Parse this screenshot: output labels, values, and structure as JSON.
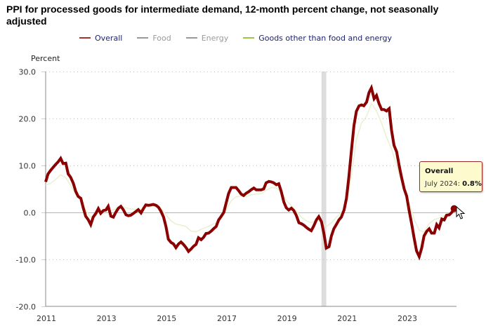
{
  "chart_data": {
    "type": "line",
    "title": "PPI for processed goods for intermediate demand, 12-month percent change, not seasonally adjusted",
    "ylabel": "Percent",
    "xlabel": "",
    "ylim": [
      -20,
      30
    ],
    "yticks": [
      "30.0",
      "20.0",
      "10.0",
      "0.0",
      "-10.0",
      "-20.0"
    ],
    "ytick_values": [
      30,
      20,
      10,
      0,
      -10,
      -20
    ],
    "xlim": [
      2011.0,
      2024.75
    ],
    "xticks": [
      "2011",
      "2013",
      "2015",
      "2017",
      "2019",
      "2021",
      "2023"
    ],
    "xtick_values": [
      2011,
      2013,
      2015,
      2017,
      2019,
      2021,
      2023
    ],
    "grid": "horizontal-dotted",
    "legend": "top-center",
    "recession_band": {
      "start": 2020.17,
      "end": 2020.33,
      "color": "#dddddd"
    },
    "series": [
      {
        "name": "Overall",
        "color": "#8b0000",
        "visible": true,
        "points": [
          [
            2011.0,
            6.5
          ],
          [
            2011.08,
            8.2
          ],
          [
            2011.17,
            9.0
          ],
          [
            2011.25,
            9.6
          ],
          [
            2011.33,
            10.2
          ],
          [
            2011.42,
            10.8
          ],
          [
            2011.5,
            11.5
          ],
          [
            2011.58,
            10.4
          ],
          [
            2011.67,
            10.5
          ],
          [
            2011.75,
            8.2
          ],
          [
            2011.83,
            7.5
          ],
          [
            2011.92,
            6.2
          ],
          [
            2012.0,
            4.5
          ],
          [
            2012.08,
            3.4
          ],
          [
            2012.17,
            3.0
          ],
          [
            2012.25,
            1.0
          ],
          [
            2012.33,
            -0.8
          ],
          [
            2012.42,
            -1.6
          ],
          [
            2012.5,
            -2.6
          ],
          [
            2012.58,
            -1.0
          ],
          [
            2012.67,
            -0.2
          ],
          [
            2012.75,
            0.8
          ],
          [
            2012.83,
            -0.2
          ],
          [
            2012.92,
            0.4
          ],
          [
            2013.0,
            0.5
          ],
          [
            2013.08,
            1.3
          ],
          [
            2013.17,
            -0.8
          ],
          [
            2013.25,
            -1.0
          ],
          [
            2013.33,
            0.0
          ],
          [
            2013.42,
            0.9
          ],
          [
            2013.5,
            1.3
          ],
          [
            2013.58,
            0.6
          ],
          [
            2013.67,
            -0.5
          ],
          [
            2013.75,
            -0.7
          ],
          [
            2013.83,
            -0.6
          ],
          [
            2013.92,
            -0.2
          ],
          [
            2014.0,
            0.2
          ],
          [
            2014.08,
            0.6
          ],
          [
            2014.17,
            -0.1
          ],
          [
            2014.25,
            0.8
          ],
          [
            2014.33,
            1.6
          ],
          [
            2014.42,
            1.5
          ],
          [
            2014.5,
            1.6
          ],
          [
            2014.58,
            1.7
          ],
          [
            2014.67,
            1.5
          ],
          [
            2014.75,
            1.1
          ],
          [
            2014.83,
            0.3
          ],
          [
            2014.92,
            -1.0
          ],
          [
            2015.0,
            -3.0
          ],
          [
            2015.08,
            -5.7
          ],
          [
            2015.17,
            -6.4
          ],
          [
            2015.25,
            -6.7
          ],
          [
            2015.33,
            -7.5
          ],
          [
            2015.42,
            -6.7
          ],
          [
            2015.5,
            -6.3
          ],
          [
            2015.58,
            -6.8
          ],
          [
            2015.67,
            -7.5
          ],
          [
            2015.75,
            -8.3
          ],
          [
            2015.83,
            -7.8
          ],
          [
            2015.92,
            -7.2
          ],
          [
            2016.0,
            -6.8
          ],
          [
            2016.08,
            -5.4
          ],
          [
            2016.17,
            -5.8
          ],
          [
            2016.25,
            -5.3
          ],
          [
            2016.33,
            -4.5
          ],
          [
            2016.42,
            -4.4
          ],
          [
            2016.5,
            -4.0
          ],
          [
            2016.58,
            -3.5
          ],
          [
            2016.67,
            -3.0
          ],
          [
            2016.75,
            -1.6
          ],
          [
            2016.83,
            -0.9
          ],
          [
            2016.92,
            0.0
          ],
          [
            2017.0,
            2.0
          ],
          [
            2017.08,
            4.0
          ],
          [
            2017.17,
            5.3
          ],
          [
            2017.25,
            5.3
          ],
          [
            2017.33,
            5.3
          ],
          [
            2017.42,
            4.6
          ],
          [
            2017.5,
            3.9
          ],
          [
            2017.58,
            3.6
          ],
          [
            2017.67,
            4.1
          ],
          [
            2017.75,
            4.4
          ],
          [
            2017.83,
            4.8
          ],
          [
            2017.92,
            5.2
          ],
          [
            2018.0,
            4.8
          ],
          [
            2018.08,
            4.8
          ],
          [
            2018.17,
            4.8
          ],
          [
            2018.25,
            5.0
          ],
          [
            2018.33,
            6.3
          ],
          [
            2018.42,
            6.6
          ],
          [
            2018.5,
            6.5
          ],
          [
            2018.58,
            6.3
          ],
          [
            2018.67,
            5.9
          ],
          [
            2018.75,
            6.1
          ],
          [
            2018.83,
            4.5
          ],
          [
            2018.92,
            2.2
          ],
          [
            2019.0,
            1.0
          ],
          [
            2019.08,
            0.5
          ],
          [
            2019.17,
            0.9
          ],
          [
            2019.25,
            0.4
          ],
          [
            2019.33,
            -0.6
          ],
          [
            2019.42,
            -2.2
          ],
          [
            2019.5,
            -2.4
          ],
          [
            2019.58,
            -2.7
          ],
          [
            2019.67,
            -3.2
          ],
          [
            2019.75,
            -3.6
          ],
          [
            2019.83,
            -3.9
          ],
          [
            2019.92,
            -2.8
          ],
          [
            2020.0,
            -1.6
          ],
          [
            2020.08,
            -0.9
          ],
          [
            2020.17,
            -2.0
          ],
          [
            2020.25,
            -4.5
          ],
          [
            2020.33,
            -7.6
          ],
          [
            2020.42,
            -7.3
          ],
          [
            2020.5,
            -5.0
          ],
          [
            2020.58,
            -3.5
          ],
          [
            2020.67,
            -2.5
          ],
          [
            2020.75,
            -1.6
          ],
          [
            2020.83,
            -1.0
          ],
          [
            2020.92,
            0.5
          ],
          [
            2021.0,
            3.0
          ],
          [
            2021.08,
            7.5
          ],
          [
            2021.17,
            13.5
          ],
          [
            2021.25,
            18.5
          ],
          [
            2021.33,
            21.5
          ],
          [
            2021.42,
            22.7
          ],
          [
            2021.5,
            22.9
          ],
          [
            2021.58,
            22.7
          ],
          [
            2021.67,
            23.5
          ],
          [
            2021.75,
            25.5
          ],
          [
            2021.83,
            26.5
          ],
          [
            2021.92,
            24.2
          ],
          [
            2022.0,
            24.9
          ],
          [
            2022.08,
            23.2
          ],
          [
            2022.17,
            21.9
          ],
          [
            2022.25,
            21.9
          ],
          [
            2022.33,
            21.6
          ],
          [
            2022.42,
            22.1
          ],
          [
            2022.5,
            17.5
          ],
          [
            2022.58,
            14.3
          ],
          [
            2022.67,
            12.9
          ],
          [
            2022.75,
            10.0
          ],
          [
            2022.83,
            7.5
          ],
          [
            2022.92,
            5.0
          ],
          [
            2023.0,
            3.5
          ],
          [
            2023.08,
            0.5
          ],
          [
            2023.17,
            -2.5
          ],
          [
            2023.25,
            -5.5
          ],
          [
            2023.33,
            -8.2
          ],
          [
            2023.42,
            -9.4
          ],
          [
            2023.5,
            -7.6
          ],
          [
            2023.58,
            -5.0
          ],
          [
            2023.67,
            -4.0
          ],
          [
            2023.75,
            -3.5
          ],
          [
            2023.83,
            -4.4
          ],
          [
            2023.92,
            -4.4
          ],
          [
            2024.0,
            -2.6
          ],
          [
            2024.08,
            -3.3
          ],
          [
            2024.17,
            -1.4
          ],
          [
            2024.25,
            -1.6
          ],
          [
            2024.33,
            -0.6
          ],
          [
            2024.42,
            -0.5
          ],
          [
            2024.5,
            0.0
          ],
          [
            2024.58,
            0.8
          ]
        ]
      },
      {
        "name": "Food",
        "color": "#999999",
        "visible": false,
        "points": []
      },
      {
        "name": "Energy",
        "color": "#999999",
        "visible": false,
        "points": []
      },
      {
        "name": "Goods other than food and energy",
        "color": "#9dc34a",
        "visible": true,
        "points": [
          [
            2011.0,
            5.8
          ],
          [
            2011.17,
            6.2
          ],
          [
            2011.33,
            7.0
          ],
          [
            2011.5,
            8.0
          ],
          [
            2011.67,
            7.4
          ],
          [
            2011.83,
            5.8
          ],
          [
            2012.0,
            3.8
          ],
          [
            2012.17,
            2.6
          ],
          [
            2012.33,
            0.5
          ],
          [
            2012.5,
            -1.0
          ],
          [
            2012.67,
            -0.6
          ],
          [
            2012.83,
            0.2
          ],
          [
            2013.0,
            0.6
          ],
          [
            2013.17,
            0.4
          ],
          [
            2013.33,
            0.7
          ],
          [
            2013.5,
            1.3
          ],
          [
            2013.67,
            1.0
          ],
          [
            2013.83,
            0.7
          ],
          [
            2014.0,
            0.7
          ],
          [
            2014.17,
            0.6
          ],
          [
            2014.33,
            1.1
          ],
          [
            2014.5,
            1.3
          ],
          [
            2014.67,
            1.3
          ],
          [
            2014.83,
            0.9
          ],
          [
            2015.0,
            -0.5
          ],
          [
            2015.17,
            -1.8
          ],
          [
            2015.33,
            -2.5
          ],
          [
            2015.5,
            -2.7
          ],
          [
            2015.67,
            -3.0
          ],
          [
            2015.83,
            -4.0
          ],
          [
            2016.0,
            -4.1
          ],
          [
            2016.17,
            -3.6
          ],
          [
            2016.33,
            -3.2
          ],
          [
            2016.5,
            -2.7
          ],
          [
            2016.67,
            -2.2
          ],
          [
            2016.83,
            -1.3
          ],
          [
            2017.0,
            0.5
          ],
          [
            2017.17,
            2.5
          ],
          [
            2017.33,
            3.3
          ],
          [
            2017.5,
            3.5
          ],
          [
            2017.67,
            3.3
          ],
          [
            2017.83,
            3.8
          ],
          [
            2018.0,
            3.9
          ],
          [
            2018.17,
            4.0
          ],
          [
            2018.33,
            4.7
          ],
          [
            2018.5,
            5.3
          ],
          [
            2018.67,
            5.2
          ],
          [
            2018.83,
            4.4
          ],
          [
            2019.0,
            2.6
          ],
          [
            2019.17,
            1.4
          ],
          [
            2019.33,
            0.3
          ],
          [
            2019.5,
            -1.0
          ],
          [
            2019.67,
            -1.8
          ],
          [
            2019.83,
            -2.2
          ],
          [
            2020.0,
            -1.7
          ],
          [
            2020.17,
            -2.0
          ],
          [
            2020.33,
            -3.0
          ],
          [
            2020.5,
            -2.2
          ],
          [
            2020.67,
            -1.0
          ],
          [
            2020.83,
            0.0
          ],
          [
            2020.92,
            0.6
          ],
          [
            2021.0,
            2.0
          ],
          [
            2021.17,
            8.0
          ],
          [
            2021.33,
            15.5
          ],
          [
            2021.5,
            19.0
          ],
          [
            2021.67,
            20.5
          ],
          [
            2021.83,
            23.2
          ],
          [
            2022.0,
            21.6
          ],
          [
            2022.17,
            19.0
          ],
          [
            2022.33,
            16.0
          ],
          [
            2022.5,
            13.5
          ],
          [
            2022.67,
            10.0
          ],
          [
            2022.83,
            6.5
          ],
          [
            2022.92,
            4.5
          ],
          [
            2023.08,
            2.0
          ],
          [
            2023.25,
            -1.5
          ],
          [
            2023.42,
            -3.8
          ],
          [
            2023.58,
            -4.2
          ],
          [
            2023.75,
            -2.4
          ],
          [
            2023.92,
            -1.5
          ],
          [
            2024.08,
            -1.2
          ],
          [
            2024.25,
            -0.7
          ],
          [
            2024.42,
            -0.2
          ],
          [
            2024.58,
            0.3
          ]
        ]
      }
    ],
    "tooltip": {
      "series": "Overall",
      "label": "July 2024",
      "value": "0.8%"
    }
  },
  "legend": {
    "items": [
      {
        "label": "Overall",
        "color": "#a83232",
        "active": true
      },
      {
        "label": "Food",
        "color": "#999999",
        "active": false
      },
      {
        "label": "Energy",
        "color": "#999999",
        "active": false
      },
      {
        "label": "Goods other than food and energy",
        "color": "#9dc34a",
        "active": true
      }
    ]
  },
  "tooltip": {
    "title": "Overall",
    "date_label": "July 2024:",
    "value": "0.8%"
  }
}
